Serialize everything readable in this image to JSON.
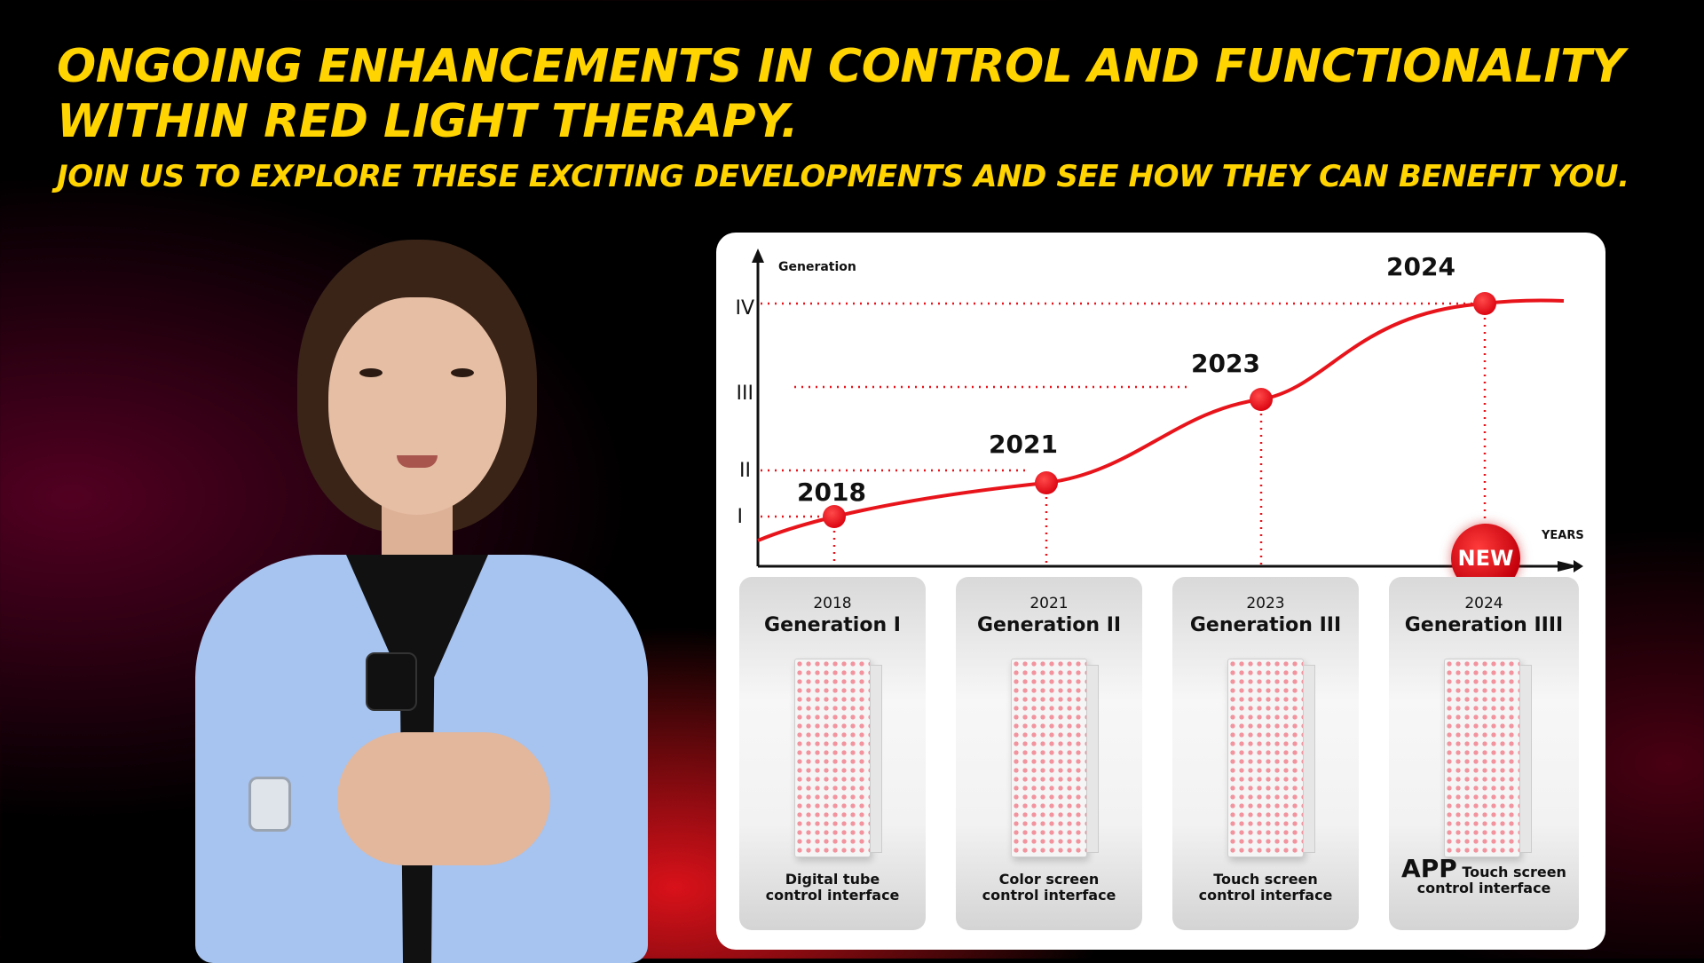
{
  "headline": "ONGOING ENHANCEMENTS IN CONTROL AND FUNCTIONALITY WITHIN RED LIGHT THERAPY.",
  "subline": "JOIN US TO EXPLORE THESE EXCITING DEVELOPMENTS AND SEE HOW THEY CAN BENEFIT YOU.",
  "colors": {
    "headline": "#FFD400",
    "curve": "#E8141B",
    "card": "#FFFFFF"
  },
  "chart": {
    "y_axis_label": "Generation",
    "x_axis_label": "YEARS",
    "levels": [
      "I",
      "II",
      "III",
      "IV"
    ],
    "milestones": [
      {
        "year": "2018",
        "level": 1
      },
      {
        "year": "2021",
        "level": 2
      },
      {
        "year": "2023",
        "level": 3
      },
      {
        "year": "2024",
        "level": 4
      }
    ],
    "badge": "NEW"
  },
  "generations": [
    {
      "year": "2018",
      "name": "Generation I",
      "desc_line1": "Digital tube",
      "desc_line2": "control interface"
    },
    {
      "year": "2021",
      "name": "Generation II",
      "desc_line1": "Color screen",
      "desc_line2": "control interface"
    },
    {
      "year": "2023",
      "name": "Generation III",
      "desc_line1": "Touch screen",
      "desc_line2": "control interface"
    },
    {
      "year": "2024",
      "name": "Generation IIII",
      "desc_prefix": "APP",
      "desc_line1": " Touch screen",
      "desc_line2": "control interface"
    }
  ]
}
